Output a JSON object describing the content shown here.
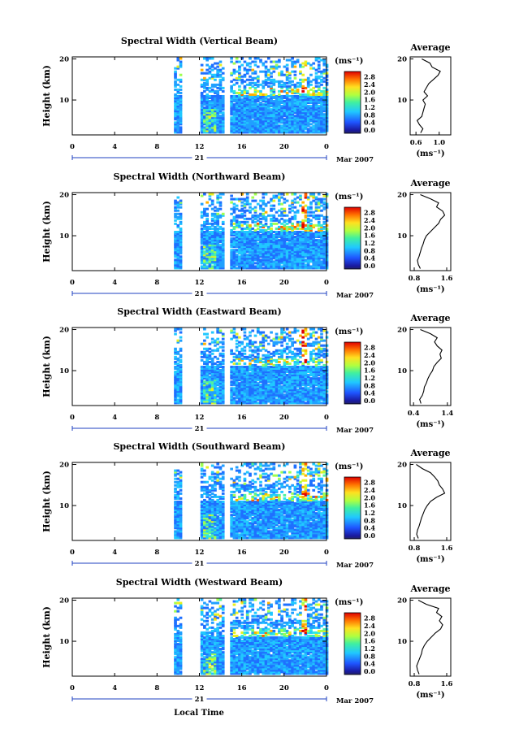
{
  "figure": {
    "xlabel": "Local Time",
    "date_label": "Mar 2007",
    "day_label": "21"
  },
  "chart_data": [
    {
      "type": "heatmap",
      "title": "Spectral Width (Vertical Beam)",
      "ylabel": "Height (km)",
      "x_ticks": [
        "0",
        "4",
        "8",
        "12",
        "16",
        "20",
        "0"
      ],
      "xlim_hours": [
        0,
        24
      ],
      "y_ticks": [
        "10",
        "20"
      ],
      "ylim_km": [
        1.5,
        20.5
      ],
      "colorbar": {
        "unit": "(ms⁻¹)",
        "labels": [
          "2.8",
          "2.4",
          "2.0",
          "1.6",
          "1.2",
          "0.8",
          "0.4",
          "0.0"
        ],
        "range": [
          0,
          3.0
        ]
      },
      "data_blocks_hours": [
        [
          9.6,
          10.2
        ],
        [
          12.1,
          14.2
        ],
        [
          14.9,
          24.0
        ]
      ],
      "average": {
        "title": "Average",
        "unit": "(ms⁻¹)",
        "x_ticks": [
          "0.6",
          "1.0"
        ],
        "xlim": [
          0.5,
          1.2
        ],
        "profile_height_km": [
          2,
          3,
          4,
          5,
          6,
          7,
          8,
          9,
          10,
          11,
          12,
          13,
          14,
          15,
          16,
          17,
          18,
          19,
          20
        ],
        "profile_width": [
          0.68,
          0.72,
          0.66,
          0.62,
          0.7,
          0.72,
          0.74,
          0.76,
          0.72,
          0.8,
          0.74,
          0.78,
          0.82,
          0.9,
          0.98,
          1.02,
          0.88,
          0.84,
          0.7
        ]
      }
    },
    {
      "type": "heatmap",
      "title": "Spectral Width (Northward Beam)",
      "ylabel": "Height (km)",
      "x_ticks": [
        "0",
        "4",
        "8",
        "12",
        "16",
        "20",
        "0"
      ],
      "xlim_hours": [
        0,
        24
      ],
      "y_ticks": [
        "10",
        "20"
      ],
      "ylim_km": [
        1.5,
        20.5
      ],
      "colorbar": {
        "unit": "(ms⁻¹)",
        "labels": [
          "2.8",
          "2.4",
          "2.0",
          "1.6",
          "1.2",
          "0.8",
          "0.4",
          "0.0"
        ],
        "range": [
          0,
          3.0
        ]
      },
      "data_blocks_hours": [
        [
          9.6,
          10.2
        ],
        [
          12.1,
          14.2
        ],
        [
          14.9,
          24.0
        ]
      ],
      "average": {
        "title": "Average",
        "unit": "(ms⁻¹)",
        "x_ticks": [
          "0.8",
          "1.6"
        ],
        "xlim": [
          0.7,
          1.7
        ],
        "profile_height_km": [
          2,
          3,
          4,
          5,
          6,
          7,
          8,
          9,
          10,
          11,
          12,
          13,
          14,
          15,
          16,
          17,
          18,
          19,
          20
        ],
        "profile_width": [
          0.95,
          0.9,
          0.88,
          0.92,
          0.95,
          0.98,
          1.02,
          1.05,
          1.1,
          1.2,
          1.3,
          1.4,
          1.45,
          1.55,
          1.5,
          1.35,
          1.4,
          1.2,
          0.95
        ]
      }
    },
    {
      "type": "heatmap",
      "title": "Spectral Width (Eastward Beam)",
      "ylabel": "Height (km)",
      "x_ticks": [
        "0",
        "4",
        "8",
        "12",
        "16",
        "20",
        "0"
      ],
      "xlim_hours": [
        0,
        24
      ],
      "y_ticks": [
        "10",
        "20"
      ],
      "ylim_km": [
        1.5,
        20.5
      ],
      "colorbar": {
        "unit": "(ms⁻¹)",
        "labels": [
          "2.8",
          "2.4",
          "2.0",
          "1.6",
          "1.2",
          "0.8",
          "0.4",
          "0.0"
        ],
        "range": [
          0,
          3.0
        ]
      },
      "data_blocks_hours": [
        [
          9.6,
          10.2
        ],
        [
          12.1,
          14.2
        ],
        [
          14.9,
          24.0
        ]
      ],
      "average": {
        "title": "Average",
        "unit": "(ms⁻¹)",
        "x_ticks": [
          "0.4",
          "1.4"
        ],
        "xlim": [
          0.3,
          1.5
        ],
        "profile_height_km": [
          2,
          3,
          4,
          5,
          6,
          7,
          8,
          9,
          10,
          11,
          12,
          13,
          14,
          15,
          16,
          17,
          18,
          19,
          20
        ],
        "profile_width": [
          0.62,
          0.58,
          0.66,
          0.7,
          0.72,
          0.78,
          0.82,
          0.88,
          0.96,
          1.0,
          1.1,
          1.22,
          1.18,
          1.24,
          1.1,
          1.02,
          1.1,
          0.9,
          0.6
        ]
      }
    },
    {
      "type": "heatmap",
      "title": "Spectral Width (Southward Beam)",
      "ylabel": "Height (km)",
      "x_ticks": [
        "0",
        "4",
        "8",
        "12",
        "16",
        "20",
        "0"
      ],
      "xlim_hours": [
        0,
        24
      ],
      "y_ticks": [
        "10",
        "20"
      ],
      "ylim_km": [
        1.5,
        20.5
      ],
      "colorbar": {
        "unit": "(ms⁻¹)",
        "labels": [
          "2.8",
          "2.4",
          "2.0",
          "1.6",
          "1.2",
          "0.8",
          "0.4",
          "0.0"
        ],
        "range": [
          0,
          3.0
        ]
      },
      "data_blocks_hours": [
        [
          9.6,
          10.2
        ],
        [
          12.1,
          14.2
        ],
        [
          14.9,
          24.0
        ]
      ],
      "average": {
        "title": "Average",
        "unit": "(ms⁻¹)",
        "x_ticks": [
          "0.8",
          "1.6"
        ],
        "xlim": [
          0.7,
          1.7
        ],
        "profile_height_km": [
          2,
          3,
          4,
          5,
          6,
          7,
          8,
          9,
          10,
          11,
          12,
          13,
          14,
          15,
          16,
          17,
          18,
          19,
          20
        ],
        "profile_width": [
          0.9,
          0.86,
          0.88,
          0.92,
          0.95,
          0.98,
          1.02,
          1.06,
          1.12,
          1.2,
          1.35,
          1.55,
          1.5,
          1.42,
          1.38,
          1.3,
          1.2,
          1.0,
          0.85
        ]
      }
    },
    {
      "type": "heatmap",
      "title": "Spectral Width (Westward Beam)",
      "ylabel": "Height (km)",
      "x_ticks": [
        "0",
        "4",
        "8",
        "12",
        "16",
        "20",
        "0"
      ],
      "xlim_hours": [
        0,
        24
      ],
      "y_ticks": [
        "10",
        "20"
      ],
      "ylim_km": [
        1.5,
        20.5
      ],
      "colorbar": {
        "unit": "(ms⁻¹)",
        "labels": [
          "2.8",
          "2.4",
          "2.0",
          "1.6",
          "1.2",
          "0.8",
          "0.4",
          "0.0"
        ],
        "range": [
          0,
          3.0
        ]
      },
      "data_blocks_hours": [
        [
          9.6,
          10.2
        ],
        [
          12.1,
          14.2
        ],
        [
          14.9,
          24.0
        ]
      ],
      "average": {
        "title": "Average",
        "unit": "(ms⁻¹)",
        "x_ticks": [
          "0.8",
          "1.6"
        ],
        "xlim": [
          0.7,
          1.7
        ],
        "profile_height_km": [
          2,
          3,
          4,
          5,
          6,
          7,
          8,
          9,
          10,
          11,
          12,
          13,
          14,
          15,
          16,
          17,
          18,
          19,
          20
        ],
        "profile_width": [
          0.92,
          0.88,
          0.86,
          0.9,
          0.94,
          0.98,
          1.0,
          1.05,
          1.12,
          1.22,
          1.32,
          1.45,
          1.5,
          1.42,
          1.48,
          1.35,
          1.4,
          1.1,
          0.9
        ]
      }
    }
  ]
}
